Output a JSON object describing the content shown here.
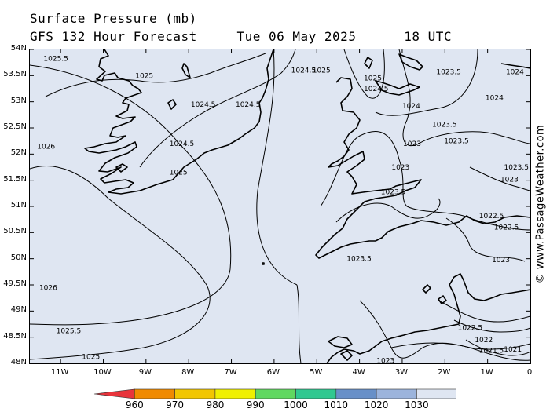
{
  "title": {
    "line1": "Surface Pressure (mb)",
    "line2": "GFS 132 Hour Forecast     Tue 06 May 2025      18 UTC"
  },
  "watermark": "© www.PassageWeather.com",
  "axes": {
    "lat_labels": [
      "54N",
      "53.5N",
      "53N",
      "52.5N",
      "52N",
      "51.5N",
      "51N",
      "50.5N",
      "50N",
      "49.5N",
      "49N",
      "48.5N",
      "48N"
    ],
    "lon_labels": [
      "11W",
      "10W",
      "9W",
      "8W",
      "7W",
      "6W",
      "5W",
      "4W",
      "3W",
      "2W",
      "1W",
      "0"
    ]
  },
  "isobar_labels": [
    {
      "text": "1025.5",
      "lon": -11.4,
      "lat": 53.83
    },
    {
      "text": "1025",
      "lon": -9.25,
      "lat": 53.5
    },
    {
      "text": "1024.5",
      "lon": -5.6,
      "lat": 53.6
    },
    {
      "text": "1025",
      "lon": -5.1,
      "lat": 53.6
    },
    {
      "text": "1024.5",
      "lon": -7.95,
      "lat": 52.95
    },
    {
      "text": "1024.5",
      "lon": -6.9,
      "lat": 52.95
    },
    {
      "text": "1026",
      "lon": -11.55,
      "lat": 52.15
    },
    {
      "text": "1024.5",
      "lon": -8.45,
      "lat": 52.2
    },
    {
      "text": "1025",
      "lon": -8.45,
      "lat": 51.65
    },
    {
      "text": "1025",
      "lon": -3.9,
      "lat": 53.45
    },
    {
      "text": "1024.5",
      "lon": -3.9,
      "lat": 53.25
    },
    {
      "text": "1024",
      "lon": -3.0,
      "lat": 52.92
    },
    {
      "text": "1023.5",
      "lon": -2.2,
      "lat": 53.57
    },
    {
      "text": "1024",
      "lon": -0.15,
      "lat": 53.57
    },
    {
      "text": "1024",
      "lon": -1.05,
      "lat": 53.08
    },
    {
      "text": "1023.5",
      "lon": -2.3,
      "lat": 52.57
    },
    {
      "text": "1023",
      "lon": -2.98,
      "lat": 52.2
    },
    {
      "text": "1023.5",
      "lon": -2.02,
      "lat": 52.25
    },
    {
      "text": "1023.5",
      "lon": 0.15,
      "lat": 51.75
    },
    {
      "text": "1023",
      "lon": -3.25,
      "lat": 51.75
    },
    {
      "text": "1023",
      "lon": -0.7,
      "lat": 51.52
    },
    {
      "text": "1023.5",
      "lon": -3.5,
      "lat": 51.28
    },
    {
      "text": "1022.5",
      "lon": -1.2,
      "lat": 50.82
    },
    {
      "text": "1022.5",
      "lon": -0.85,
      "lat": 50.6
    },
    {
      "text": "1023",
      "lon": -0.9,
      "lat": 49.98
    },
    {
      "text": "1023.5",
      "lon": -4.3,
      "lat": 50.0
    },
    {
      "text": "1026",
      "lon": -11.5,
      "lat": 49.45
    },
    {
      "text": "1025.5",
      "lon": -11.1,
      "lat": 48.62
    },
    {
      "text": "1025",
      "lon": -10.5,
      "lat": 48.13
    },
    {
      "text": "1023",
      "lon": -3.6,
      "lat": 48.05
    },
    {
      "text": "1022.5",
      "lon": -1.7,
      "lat": 48.68
    },
    {
      "text": "1022",
      "lon": -1.3,
      "lat": 48.45
    },
    {
      "text": "1021.5",
      "lon": -1.2,
      "lat": 48.25
    },
    {
      "text": "1021",
      "lon": -0.2,
      "lat": 48.27
    }
  ],
  "legend": {
    "labels": [
      "960",
      "970",
      "980",
      "990",
      "1000",
      "1010",
      "1020",
      "1030"
    ],
    "colors": [
      "#e8343c",
      "#f08a00",
      "#f2c600",
      "#f0f000",
      "#60d860",
      "#30c890",
      "#6890c8",
      "#9cb4dc",
      "#dfe6f2",
      "#ffffff"
    ]
  }
}
